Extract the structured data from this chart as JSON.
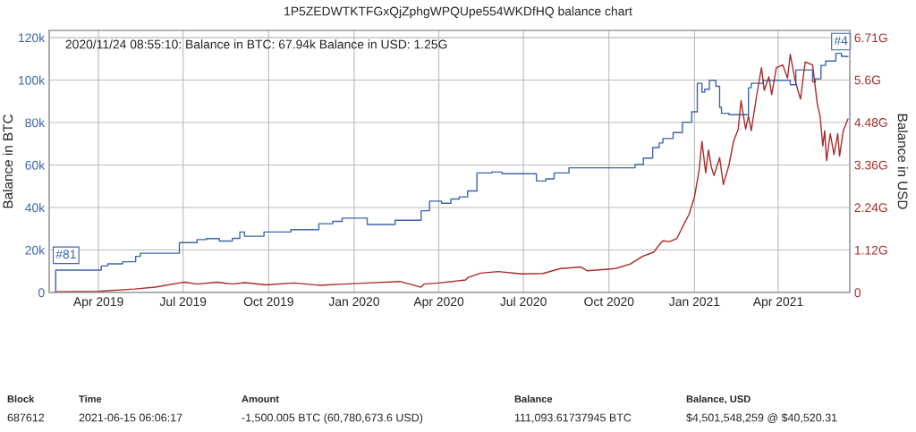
{
  "chart_data": {
    "type": "line",
    "title": "1P5ZEDWTKTFGxQjZphgWPQUpe554WKDfHQ balance chart",
    "ylabel": "Balance in BTC",
    "y2label": "Balance in USD",
    "xlim": [
      "2019-02-07",
      "2021-06-17"
    ],
    "xticks": [
      {
        "value": "2019-04-01",
        "label": "Apr 2019"
      },
      {
        "value": "2019-07-01",
        "label": "Jul 2019"
      },
      {
        "value": "2019-10-01",
        "label": "Oct 2019"
      },
      {
        "value": "2020-01-01",
        "label": "Jan 2020"
      },
      {
        "value": "2020-04-01",
        "label": "Apr 2020"
      },
      {
        "value": "2020-07-01",
        "label": "Jul 2020"
      },
      {
        "value": "2020-10-01",
        "label": "Oct 2020"
      },
      {
        "value": "2021-01-01",
        "label": "Jan 2021"
      },
      {
        "value": "2021-04-01",
        "label": "Apr 2021"
      }
    ],
    "ylim": [
      0,
      123400
    ],
    "yticks": [
      0,
      {
        "value": 20000,
        "label": "20k"
      },
      {
        "value": 40000,
        "label": "40k"
      },
      {
        "value": 60000,
        "label": "60k"
      },
      {
        "value": 80000,
        "label": "80k"
      },
      {
        "value": 100000,
        "label": "100k"
      },
      {
        "value": 120000,
        "label": "120k"
      }
    ],
    "y2lim": [
      0,
      6.9
    ],
    "y2ticks": [
      0,
      {
        "value": 1.12,
        "label": "1.12G"
      },
      {
        "value": 2.24,
        "label": "2.24G"
      },
      {
        "value": 3.36,
        "label": "3.36G"
      },
      {
        "value": 4.48,
        "label": "4.48G"
      },
      {
        "value": 5.6,
        "label": "5.6G"
      },
      {
        "value": 6.71,
        "label": "6.71G"
      }
    ],
    "grid": true,
    "series": [
      {
        "type": "step",
        "color": "#3d66a8",
        "x": [
          "2019-02-12",
          "2019-02-14",
          "2019-04-04",
          "2019-04-11",
          "2019-04-27",
          "2019-05-11",
          "2019-05-16",
          "2019-06-01",
          "2019-06-27",
          "2019-07-16",
          "2019-07-26",
          "2019-08-09",
          "2019-08-23",
          "2019-08-31",
          "2019-09-05",
          "2019-09-26",
          "2019-10-25",
          "2019-11-24",
          "2019-12-09",
          "2019-12-19",
          "2020-01-15",
          "2020-02-14",
          "2020-03-13",
          "2020-03-22",
          "2020-04-04",
          "2020-04-14",
          "2020-04-23",
          "2020-05-02",
          "2020-05-12",
          "2020-05-28",
          "2020-06-08",
          "2020-07-15",
          "2020-07-25",
          "2020-08-03",
          "2020-08-19",
          "2020-09-09",
          "2020-10-29",
          "2020-11-07",
          "2020-11-17",
          "2020-11-24",
          "2020-11-28",
          "2020-12-09",
          "2020-12-19",
          "2020-12-29",
          "2021-01-04",
          "2021-01-09",
          "2021-01-12",
          "2021-01-17",
          "2021-01-24",
          "2021-01-28",
          "2021-01-30",
          "2021-02-07",
          "2021-02-18",
          "2021-02-28",
          "2021-03-03",
          "2021-03-16",
          "2021-03-29",
          "2021-04-14",
          "2021-04-20",
          "2021-04-27",
          "2021-05-08",
          "2021-05-11",
          "2021-05-17",
          "2021-05-22",
          "2021-06-02",
          "2021-06-08",
          "2021-06-13",
          "2021-06-15"
        ],
        "values": [
          0,
          10500,
          12500,
          13500,
          14500,
          17000,
          18500,
          18500,
          23500,
          24900,
          25400,
          24200,
          25500,
          28500,
          26500,
          28500,
          29600,
          32400,
          33500,
          35000,
          32000,
          34000,
          38500,
          43000,
          42000,
          44000,
          45000,
          47800,
          56300,
          56700,
          55900,
          52500,
          53500,
          56300,
          58700,
          58700,
          60200,
          63300,
          68200,
          70400,
          72500,
          75300,
          80200,
          85100,
          98500,
          94300,
          95700,
          99900,
          97100,
          87200,
          84400,
          83700,
          83700,
          96400,
          98500,
          99900,
          99900,
          97800,
          104800,
          104800,
          99200,
          100600,
          106900,
          109000,
          112600,
          111200,
          111100,
          111100
        ]
      },
      {
        "axis": "y2",
        "color": "#a82b2b",
        "x": [
          "2019-02-14",
          "2019-04-01",
          "2019-05-10",
          "2019-06-01",
          "2019-06-27",
          "2019-07-03",
          "2019-07-16",
          "2019-08-07",
          "2019-08-23",
          "2019-09-05",
          "2019-09-28",
          "2019-10-28",
          "2019-11-24",
          "2019-12-21",
          "2020-01-15",
          "2020-02-19",
          "2020-03-13",
          "2020-03-16",
          "2020-04-01",
          "2020-04-30",
          "2020-05-02",
          "2020-05-16",
          "2020-06-04",
          "2020-06-29",
          "2020-07-22",
          "2020-08-10",
          "2020-09-01",
          "2020-09-08",
          "2020-10-08",
          "2020-10-24",
          "2020-11-06",
          "2020-11-18",
          "2020-11-24",
          "2020-11-28",
          "2020-12-05",
          "2020-12-13",
          "2020-12-20",
          "2020-12-26",
          "2021-01-01",
          "2021-01-06",
          "2021-01-09",
          "2021-01-13",
          "2021-01-16",
          "2021-01-19",
          "2021-01-22",
          "2021-01-28",
          "2021-02-01",
          "2021-02-07",
          "2021-02-12",
          "2021-02-17",
          "2021-02-20",
          "2021-02-25",
          "2021-02-28",
          "2021-03-03",
          "2021-03-09",
          "2021-03-14",
          "2021-03-17",
          "2021-03-22",
          "2021-03-25",
          "2021-03-30",
          "2021-04-06",
          "2021-04-11",
          "2021-04-14",
          "2021-04-19",
          "2021-04-25",
          "2021-04-30",
          "2021-05-08",
          "2021-05-13",
          "2021-05-16",
          "2021-05-19",
          "2021-05-21",
          "2021-05-23",
          "2021-05-27",
          "2021-05-31",
          "2021-06-04",
          "2021-06-06",
          "2021-06-10",
          "2021-06-15"
        ],
        "values": [
          0.02,
          0.03,
          0.09,
          0.14,
          0.25,
          0.27,
          0.22,
          0.27,
          0.22,
          0.26,
          0.2,
          0.25,
          0.19,
          0.22,
          0.25,
          0.29,
          0.14,
          0.22,
          0.25,
          0.33,
          0.39,
          0.51,
          0.55,
          0.49,
          0.5,
          0.63,
          0.67,
          0.57,
          0.63,
          0.75,
          0.95,
          1.06,
          1.25,
          1.36,
          1.34,
          1.42,
          1.77,
          2.05,
          2.52,
          3.23,
          3.98,
          3.15,
          3.75,
          3.31,
          3.08,
          3.55,
          2.84,
          3.35,
          3.98,
          4.3,
          5.05,
          4.3,
          4.65,
          4.26,
          5.21,
          5.92,
          5.32,
          5.68,
          5.21,
          5.92,
          5.99,
          5.64,
          6.27,
          5.6,
          5.09,
          6.07,
          5.99,
          4.97,
          4.65,
          3.86,
          4.26,
          3.47,
          4.18,
          3.63,
          4.18,
          3.59,
          4.26,
          4.57
        ]
      }
    ],
    "annotations": [
      "2020/11/24 08:55:10: Balance in BTC: 67.94k Balance in USD: 1.25G",
      {
        "text": "#81",
        "x": "2019-02-14",
        "y": 10500
      },
      {
        "text": "#4",
        "x": "2021-06-15",
        "y": 111100
      },
      "Block",
      "Time",
      "Amount",
      "Balance",
      "Balance, USD",
      "687612",
      "2021-06-15 06:06:17",
      "-1,500.005 BTC (60,780,673.6 USD)",
      "111,093.61737945 BTC",
      "$4,501,548,259 @ $40,520.31"
    ]
  }
}
